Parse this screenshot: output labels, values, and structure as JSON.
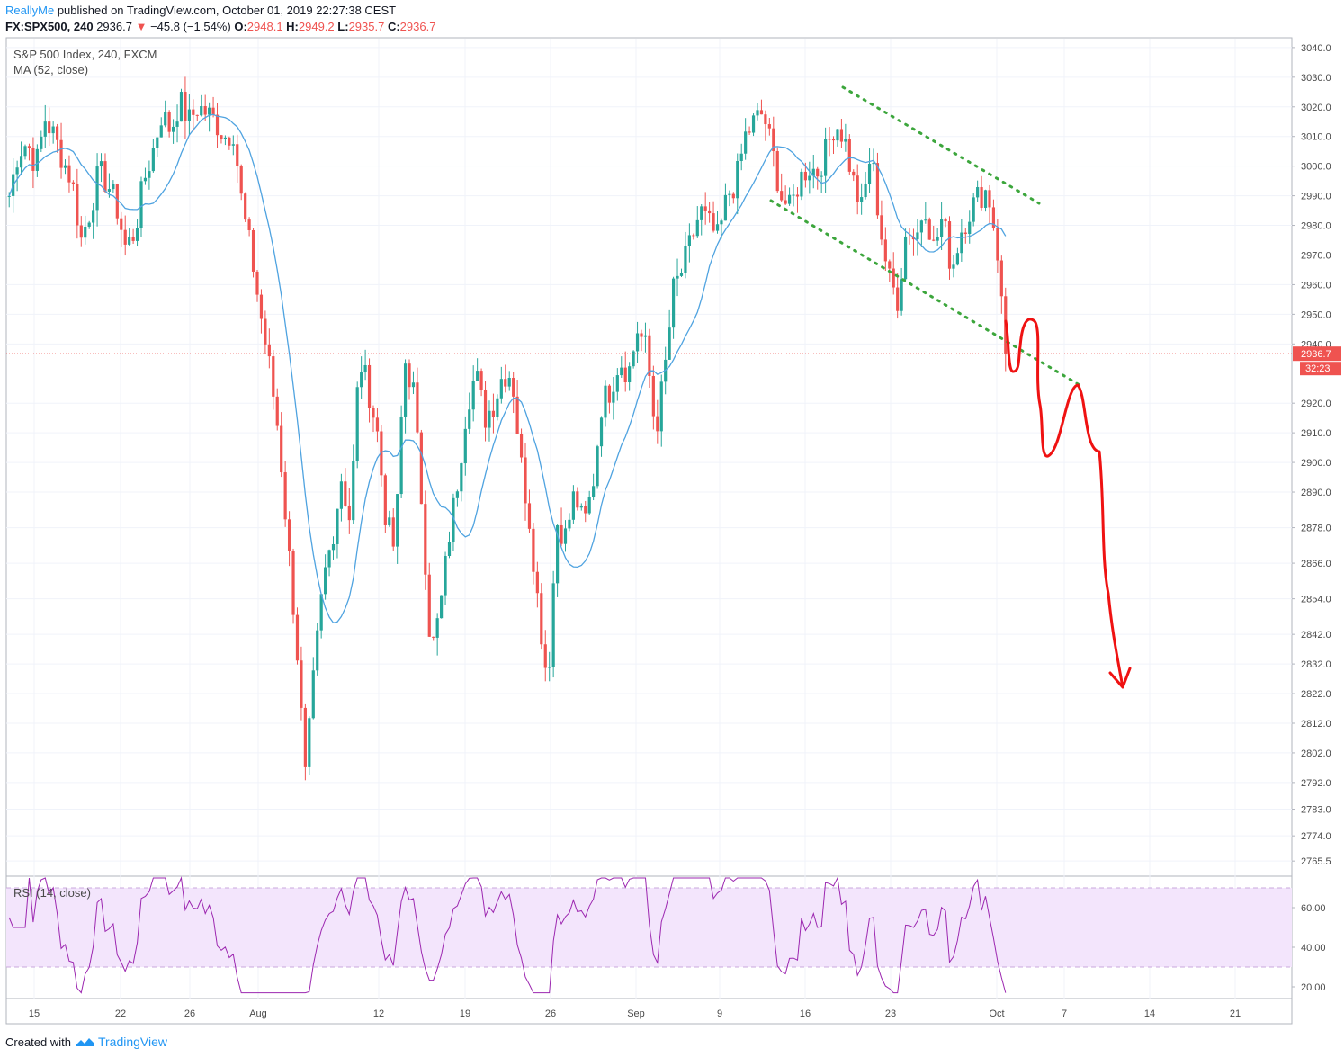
{
  "header": {
    "author": "ReallyMe",
    "published_text": "published on TradingView.com, October 01, 2019 22:27:38 CEST",
    "symbol_line": "FX:SPX500, 240",
    "last": "2936.7",
    "down_arrow": "▼",
    "change": "−45.8 (−1.54%)",
    "o_label": "O:",
    "o": "2948.1",
    "h_label": "H:",
    "h": "2949.2",
    "l_label": "L:",
    "l": "2935.7",
    "c_label": "C:",
    "c": "2936.7"
  },
  "legend": {
    "title": "S&P 500 Index, 240, FXCM",
    "ma": "MA (52, close)",
    "rsi": "RSI (14, close)"
  },
  "footer": {
    "created_with": "Created with",
    "brand": "TradingView"
  },
  "chart_data": [
    {
      "type": "candlestick",
      "title": "S&P 500 Index, 240, FXCM",
      "ylim": [
        2761,
        3043
      ],
      "y_ticks": [
        "3040.0",
        "3030.0",
        "3020.0",
        "3010.0",
        "3000.0",
        "2990.0",
        "2980.0",
        "2970.0",
        "2960.0",
        "2950.0",
        "2940.0",
        "2920.0",
        "2910.0",
        "2900.0",
        "2890.0",
        "2878.0",
        "2866.0",
        "2854.0",
        "2842.0",
        "2832.0",
        "2822.0",
        "2812.0",
        "2802.0",
        "2792.0",
        "2783.0",
        "2774.0",
        "2765.5"
      ],
      "x_ticks": [
        "15",
        "22",
        "26",
        "Aug",
        "12",
        "19",
        "26",
        "Sep",
        "9",
        "16",
        "23",
        "Oct",
        "7",
        "14",
        "21"
      ],
      "last_price": "2936.7",
      "countdown": "32:23",
      "ma_label": "MA (52, close)",
      "close_path": [
        [
          15,
          2990
        ],
        [
          16,
          3005
        ],
        [
          17,
          3008
        ],
        [
          18,
          3000
        ],
        [
          19,
          3016
        ],
        [
          20,
          3010
        ],
        [
          21,
          3002
        ],
        [
          22,
          2995
        ],
        [
          23,
          2975
        ],
        [
          24,
          2985
        ],
        [
          25,
          2998
        ],
        [
          26,
          2994
        ],
        [
          27,
          2986
        ],
        [
          28,
          2972
        ],
        [
          29,
          2978
        ],
        [
          30,
          2995
        ],
        [
          31,
          3005
        ],
        [
          32,
          3018
        ],
        [
          33,
          3012
        ],
        [
          34,
          3022
        ],
        [
          35,
          3015
        ],
        [
          36,
          3020
        ],
        [
          37,
          3018
        ],
        [
          38,
          3015
        ],
        [
          39,
          3010
        ],
        [
          40,
          3012
        ],
        [
          41,
          2985
        ],
        [
          42,
          2970
        ],
        [
          43,
          2950
        ],
        [
          44,
          2932
        ],
        [
          45,
          2910
        ],
        [
          46,
          2875
        ],
        [
          47,
          2840
        ],
        [
          48,
          2793
        ],
        [
          49,
          2830
        ],
        [
          50,
          2860
        ],
        [
          51,
          2875
        ],
        [
          52,
          2895
        ],
        [
          53,
          2880
        ],
        [
          54,
          2935
        ],
        [
          55,
          2925
        ],
        [
          56,
          2910
        ],
        [
          57,
          2880
        ],
        [
          58,
          2870
        ],
        [
          59,
          2935
        ],
        [
          60,
          2925
        ],
        [
          61,
          2885
        ],
        [
          62,
          2835
        ],
        [
          63,
          2850
        ],
        [
          64,
          2875
        ],
        [
          65,
          2895
        ],
        [
          66,
          2920
        ],
        [
          67,
          2930
        ],
        [
          68,
          2915
        ],
        [
          69,
          2920
        ],
        [
          70,
          2930
        ],
        [
          71,
          2930
        ],
        [
          72,
          2900
        ],
        [
          73,
          2880
        ],
        [
          74,
          2850
        ],
        [
          75,
          2825
        ],
        [
          76,
          2880
        ],
        [
          77,
          2875
        ],
        [
          78,
          2890
        ],
        [
          79,
          2878
        ],
        [
          80,
          2892
        ],
        [
          81,
          2920
        ],
        [
          82,
          2925
        ],
        [
          83,
          2935
        ],
        [
          84,
          2930
        ],
        [
          85,
          2945
        ],
        [
          86,
          2938
        ],
        [
          87,
          2910
        ],
        [
          88,
          2930
        ],
        [
          89,
          2958
        ],
        [
          90,
          2965
        ],
        [
          91,
          2975
        ],
        [
          92,
          2985
        ],
        [
          93,
          2980
        ],
        [
          94,
          2975
        ],
        [
          95,
          2990
        ],
        [
          96,
          2995
        ],
        [
          97,
          3010
        ],
        [
          98,
          3015
        ],
        [
          99,
          3018
        ],
        [
          100,
          3005
        ],
        [
          101,
          2990
        ],
        [
          102,
          2985
        ],
        [
          103,
          2995
        ],
        [
          104,
          3000
        ],
        [
          105,
          2998
        ],
        [
          106,
          3005
        ],
        [
          107,
          3015
        ],
        [
          108,
          3010
        ],
        [
          109,
          2995
        ],
        [
          110,
          2985
        ],
        [
          111,
          3005
        ],
        [
          112,
          2980
        ],
        [
          113,
          2962
        ],
        [
          114,
          2955
        ],
        [
          115,
          2980
        ],
        [
          116,
          2975
        ],
        [
          117,
          2988
        ],
        [
          118,
          2972
        ],
        [
          119,
          2983
        ],
        [
          120,
          2965
        ],
        [
          121,
          2978
        ],
        [
          122,
          2985
        ],
        [
          123,
          2990
        ],
        [
          124,
          2992
        ],
        [
          125,
          2975
        ],
        [
          126,
          2936.7
        ]
      ],
      "rsi_label": "RSI (14, close)",
      "rsi_ylim": [
        15,
        75
      ],
      "rsi_ticks": [
        "60.00",
        "40.00",
        "20.00"
      ],
      "rsi_bands": [
        70,
        30
      ]
    }
  ]
}
